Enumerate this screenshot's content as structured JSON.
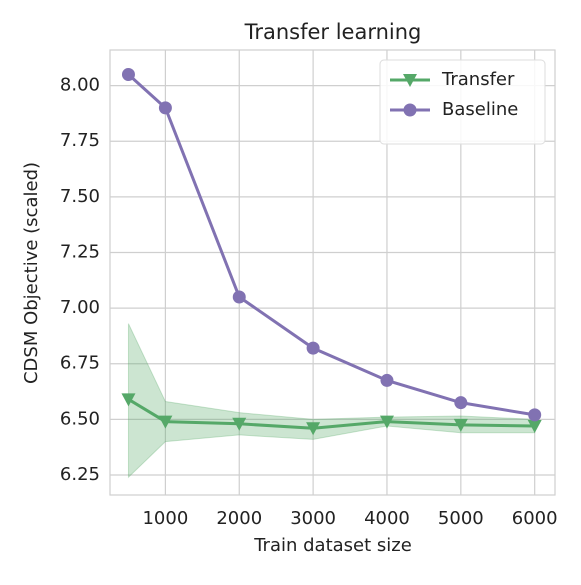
{
  "chart_data": {
    "type": "line",
    "title": "Transfer learning",
    "x_label": "Train dataset size",
    "y_label": "CDSM Objective (scaled)",
    "x": [
      500,
      1000,
      2000,
      3000,
      4000,
      5000,
      6000
    ],
    "series": [
      {
        "name": "Transfer",
        "color": "#55a868",
        "marker": "triangle-down",
        "values": [
          6.59,
          6.49,
          6.48,
          6.46,
          6.49,
          6.475,
          6.47
        ],
        "lower": [
          6.24,
          6.4,
          6.43,
          6.41,
          6.47,
          6.44,
          6.44
        ],
        "upper": [
          6.93,
          6.58,
          6.53,
          6.5,
          6.51,
          6.515,
          6.5
        ]
      },
      {
        "name": "Baseline",
        "color": "#8172b2",
        "marker": "circle",
        "values": [
          8.05,
          7.9,
          7.05,
          6.82,
          6.675,
          6.575,
          6.52
        ]
      }
    ],
    "xlim": [
      250,
      6275
    ],
    "ylim": [
      6.16,
      8.16
    ],
    "xticks": [
      1000,
      2000,
      3000,
      4000,
      5000,
      6000
    ],
    "yticks": [
      6.25,
      {
        "value": 6.5,
        "label": "6.50"
      },
      6.75,
      {
        "value": 7,
        "label": "7.00"
      },
      7.25,
      {
        "value": 7.5,
        "label": "7.50"
      },
      7.75,
      {
        "value": 8,
        "label": "8.00"
      }
    ],
    "grid": true,
    "legend": "upper right"
  }
}
